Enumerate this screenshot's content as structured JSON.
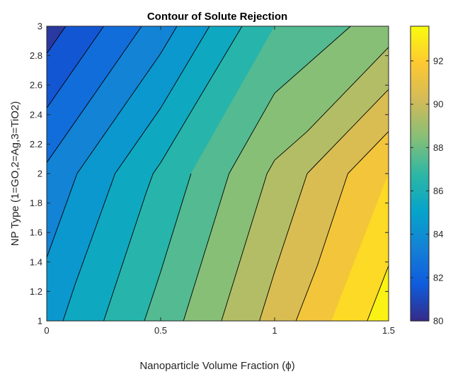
{
  "chart_data": {
    "type": "contour",
    "title": "Contour of Solute Rejection",
    "xlabel": "Nanoparticle Volume Fraction (ϕ)",
    "ylabel": "NP Type (1=GO,2=Ag,3=TiO2)",
    "xlim": [
      0,
      1.5
    ],
    "ylim": [
      1,
      3
    ],
    "x_ticks": [
      "0",
      "0.5",
      "1",
      "1.5"
    ],
    "y_ticks": [
      "1",
      "1.2",
      "1.4",
      "1.6",
      "1.8",
      "2",
      "2.2",
      "2.4",
      "2.6",
      "2.8",
      "3"
    ],
    "x": [
      0,
      0.5,
      1,
      1.5
    ],
    "y": [
      1,
      2,
      3
    ],
    "z": [
      [
        84.6,
        87.4,
        90.4,
        93.6
      ],
      [
        83.2,
        86.2,
        89.2,
        92.0
      ],
      [
        80.5,
        83.5,
        87.0,
        88.5
      ]
    ],
    "levels": [
      81,
      82,
      83,
      84,
      85,
      86,
      87,
      88,
      89,
      90,
      91,
      92,
      93
    ],
    "colorbar": {
      "range": [
        80,
        93.6
      ],
      "ticks": [
        "80",
        "82",
        "84",
        "86",
        "88",
        "90",
        "92"
      ],
      "tick_values": [
        80,
        82,
        84,
        86,
        88,
        90,
        92
      ]
    },
    "colormap": [
      "#352a87",
      "#0f5cdd",
      "#1481d6",
      "#06a4ca",
      "#2eb7a4",
      "#87bf77",
      "#d1bb59",
      "#fec832",
      "#f9fb0e"
    ],
    "grid": false
  }
}
